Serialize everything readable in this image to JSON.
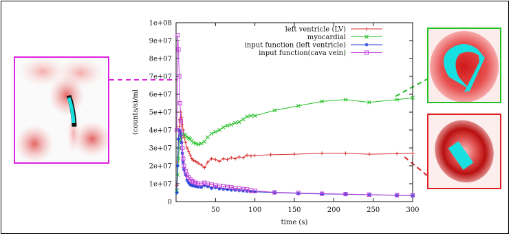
{
  "chart_data": {
    "type": "line",
    "title": "",
    "xlabel": "time (s)",
    "ylabel": "(counts/s)/ml",
    "xlim": [
      0,
      300
    ],
    "ylim": [
      0,
      100000000
    ],
    "x_ticks": [
      50,
      100,
      150,
      200,
      250,
      300
    ],
    "y_ticks": [
      0,
      10000000,
      20000000,
      30000000,
      40000000,
      50000000,
      60000000,
      70000000,
      80000000,
      90000000,
      100000000
    ],
    "y_tick_labels": [
      "0",
      "1e+07",
      "2e+07",
      "3e+07",
      "4e+07",
      "5e+07",
      "6e+07",
      "7e+07",
      "8e+07",
      "9e+07",
      "1e+08"
    ],
    "legend_position": "top-right",
    "grid": false,
    "series": [
      {
        "name": "left ventricle (LV)",
        "color": "#d83030",
        "marker": "+",
        "points": [
          [
            1,
            9000000
          ],
          [
            2,
            22000000
          ],
          [
            3,
            35000000
          ],
          [
            4,
            42000000
          ],
          [
            5,
            46000000
          ],
          [
            6,
            50000000
          ],
          [
            7,
            47000000
          ],
          [
            8,
            43000000
          ],
          [
            9,
            40000000
          ],
          [
            10,
            36000000
          ],
          [
            12,
            33000000
          ],
          [
            14,
            30000000
          ],
          [
            16,
            28000000
          ],
          [
            18,
            26000000
          ],
          [
            20,
            24000000
          ],
          [
            22,
            23000000
          ],
          [
            25,
            22500000
          ],
          [
            28,
            21500000
          ],
          [
            32,
            20500000
          ],
          [
            36,
            19000000
          ],
          [
            40,
            22000000
          ],
          [
            45,
            24000000
          ],
          [
            50,
            23500000
          ],
          [
            55,
            22500000
          ],
          [
            60,
            24000000
          ],
          [
            65,
            23500000
          ],
          [
            70,
            24500000
          ],
          [
            75,
            24000000
          ],
          [
            80,
            25000000
          ],
          [
            85,
            24500000
          ],
          [
            90,
            26000000
          ],
          [
            95,
            25500000
          ],
          [
            100,
            25800000
          ],
          [
            120,
            26200000
          ],
          [
            150,
            26500000
          ],
          [
            185,
            27000000
          ],
          [
            215,
            27000000
          ],
          [
            245,
            26500000
          ],
          [
            280,
            26800000
          ],
          [
            300,
            27000000
          ]
        ]
      },
      {
        "name": "myocardial",
        "color": "#22c022",
        "marker": "x",
        "points": [
          [
            1,
            6000000
          ],
          [
            2,
            15000000
          ],
          [
            3,
            24000000
          ],
          [
            4,
            30000000
          ],
          [
            5,
            34000000
          ],
          [
            6,
            36000000
          ],
          [
            7,
            37500000
          ],
          [
            8,
            38000000
          ],
          [
            10,
            37500000
          ],
          [
            12,
            37000000
          ],
          [
            14,
            36000000
          ],
          [
            16,
            35500000
          ],
          [
            18,
            35000000
          ],
          [
            20,
            34000000
          ],
          [
            22,
            33000000
          ],
          [
            25,
            32500000
          ],
          [
            28,
            32000000
          ],
          [
            32,
            32500000
          ],
          [
            36,
            33500000
          ],
          [
            40,
            36000000
          ],
          [
            45,
            38000000
          ],
          [
            50,
            39000000
          ],
          [
            55,
            40000000
          ],
          [
            60,
            41500000
          ],
          [
            65,
            42500000
          ],
          [
            70,
            43000000
          ],
          [
            75,
            44000000
          ],
          [
            80,
            44500000
          ],
          [
            85,
            46000000
          ],
          [
            90,
            47500000
          ],
          [
            95,
            48000000
          ],
          [
            100,
            48000000
          ],
          [
            125,
            51000000
          ],
          [
            155,
            53500000
          ],
          [
            185,
            56000000
          ],
          [
            215,
            57000000
          ],
          [
            245,
            55500000
          ],
          [
            280,
            57000000
          ],
          [
            300,
            58000000
          ]
        ]
      },
      {
        "name": "input function (left ventricle)",
        "color": "#2040d8",
        "marker": "*",
        "points": [
          [
            1,
            5000000
          ],
          [
            2,
            20000000
          ],
          [
            3,
            35000000
          ],
          [
            4,
            40000000
          ],
          [
            5,
            39000000
          ],
          [
            6,
            37000000
          ],
          [
            7,
            33000000
          ],
          [
            8,
            27000000
          ],
          [
            9,
            22000000
          ],
          [
            10,
            18000000
          ],
          [
            12,
            15000000
          ],
          [
            14,
            12000000
          ],
          [
            16,
            10500000
          ],
          [
            18,
            9500000
          ],
          [
            20,
            9000000
          ],
          [
            22,
            8800000
          ],
          [
            25,
            8500000
          ],
          [
            28,
            8200000
          ],
          [
            32,
            8000000
          ],
          [
            36,
            9000000
          ],
          [
            40,
            8500000
          ],
          [
            45,
            7500000
          ],
          [
            50,
            7800000
          ],
          [
            55,
            7200000
          ],
          [
            60,
            7000000
          ],
          [
            65,
            6800000
          ],
          [
            70,
            6500000
          ],
          [
            75,
            6400000
          ],
          [
            80,
            6200000
          ],
          [
            85,
            6000000
          ],
          [
            90,
            5800000
          ],
          [
            95,
            5600000
          ],
          [
            100,
            5500000
          ],
          [
            125,
            5000000
          ],
          [
            155,
            4600000
          ],
          [
            185,
            4300000
          ],
          [
            215,
            4100000
          ],
          [
            245,
            3800000
          ],
          [
            280,
            3500000
          ],
          [
            300,
            3400000
          ]
        ]
      },
      {
        "name": "input function(cava vein)",
        "color": "#c040d8",
        "marker": "square",
        "points": [
          [
            1,
            40000000
          ],
          [
            2,
            93000000
          ],
          [
            3,
            85000000
          ],
          [
            4,
            70000000
          ],
          [
            5,
            55000000
          ],
          [
            6,
            45000000
          ],
          [
            7,
            38000000
          ],
          [
            8,
            30000000
          ],
          [
            9,
            24000000
          ],
          [
            10,
            20000000
          ],
          [
            12,
            17000000
          ],
          [
            14,
            15000000
          ],
          [
            16,
            13500000
          ],
          [
            18,
            12500000
          ],
          [
            20,
            11500000
          ],
          [
            22,
            11000000
          ],
          [
            25,
            10500000
          ],
          [
            28,
            10000000
          ],
          [
            32,
            10000000
          ],
          [
            36,
            10500000
          ],
          [
            40,
            10000000
          ],
          [
            45,
            9500000
          ],
          [
            50,
            9000000
          ],
          [
            55,
            8800000
          ],
          [
            60,
            8500000
          ],
          [
            65,
            8200000
          ],
          [
            70,
            8000000
          ],
          [
            75,
            7500000
          ],
          [
            80,
            7300000
          ],
          [
            85,
            7000000
          ],
          [
            90,
            6800000
          ],
          [
            95,
            6200000
          ],
          [
            100,
            6000000
          ],
          [
            125,
            5200000
          ],
          [
            155,
            4800000
          ],
          [
            185,
            4400000
          ],
          [
            215,
            4200000
          ],
          [
            245,
            3900000
          ],
          [
            280,
            3600000
          ],
          [
            300,
            3500000
          ]
        ]
      }
    ]
  },
  "panels": {
    "left_border_color": "#e020e0",
    "top_right_border_color": "#22c022",
    "bottom_right_border_color": "#e02020"
  }
}
